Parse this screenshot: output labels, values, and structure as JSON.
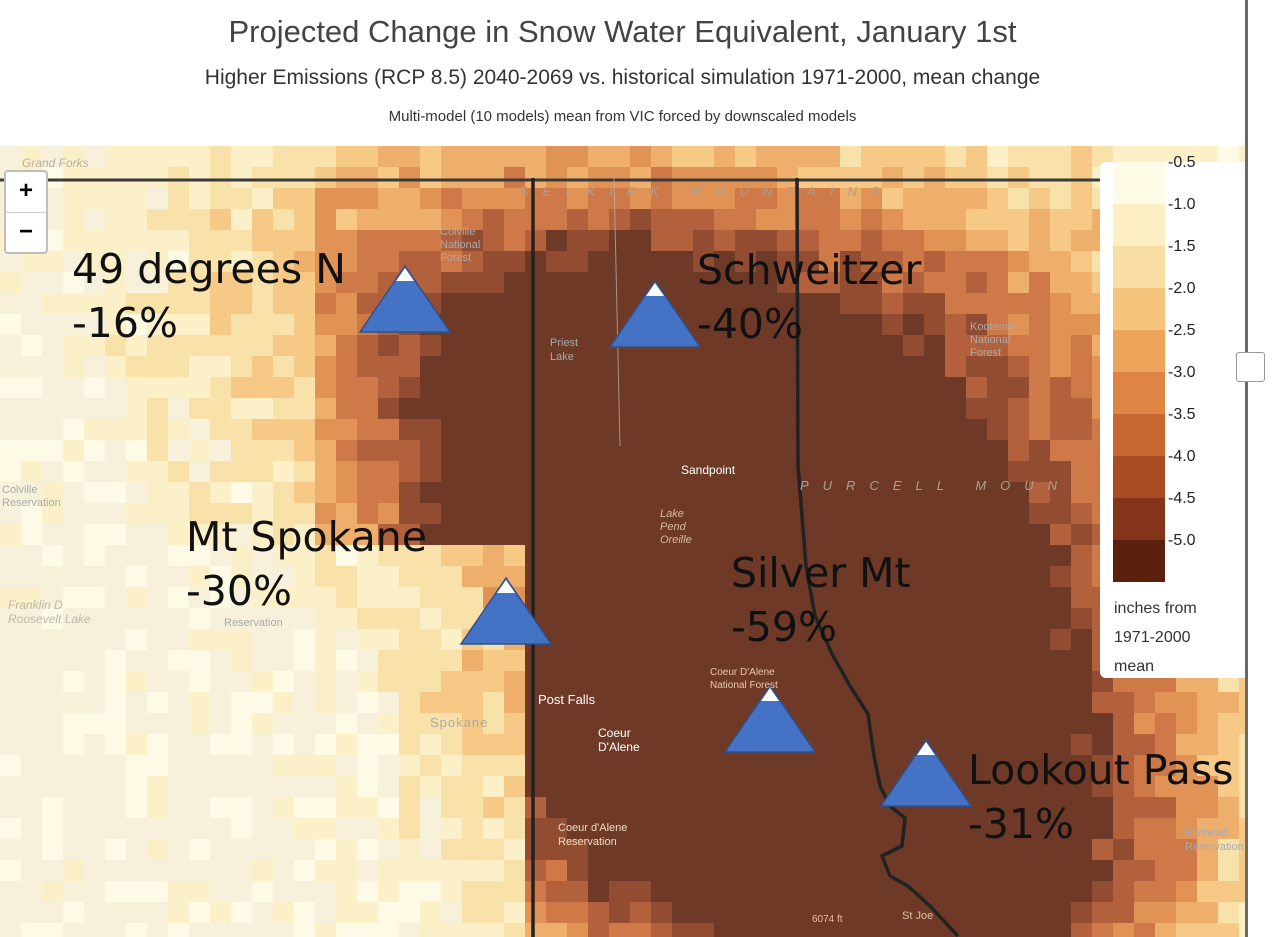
{
  "header": {
    "title": "Projected Change in Snow Water Equivalent, January 1st",
    "subtitle": "Higher Emissions (RCP 8.5) 2040-2069 vs. historical simulation 1971-2000, mean change",
    "note": "Multi-model (10 models) mean from VIC forced by downscaled models"
  },
  "zoom": {
    "in_label": "+",
    "out_label": "−"
  },
  "legend": {
    "labels": [
      "-0.5",
      "-1.0",
      "-1.5",
      "-2.0",
      "-2.5",
      "-3.0",
      "-3.5",
      "-4.0",
      "-4.5",
      "-5.0"
    ],
    "colors": [
      "#fffbe6",
      "#fcefc4",
      "#f9dea3",
      "#f6c47a",
      "#eca55b",
      "#de8543",
      "#c96733",
      "#a94c25",
      "#843419",
      "#5b200e"
    ],
    "units": "inches from 1971-2000 mean"
  },
  "callouts": [
    {
      "name": "49 degrees N",
      "change": "-16%"
    },
    {
      "name": "Schweitzer",
      "change": "-40%"
    },
    {
      "name": "Mt Spokane",
      "change": "-30%"
    },
    {
      "name": "Silver Mt",
      "change": "-59%"
    },
    {
      "name": "Lookout Pass",
      "change": "-31%"
    }
  ],
  "marker_color": "#4472c4",
  "basemap_labels": {
    "grand_forks": "Grand Forks",
    "selkirk": "SELKIRK MOUNTAINS",
    "purcell": "PURCELL MOUN",
    "colville_forest": "Colville National Forest",
    "priest_lake": "Priest Lake",
    "kootenai": "Kootenai National Forest",
    "sandpoint": "Sandpoint",
    "lake_pend_oreille": "Lake Pend Oreille",
    "colville_reservation": "Colville Reservation",
    "fdr_lake": "Franklin D Roosevelt Lake",
    "reservation": "Reservation",
    "post_falls": "Post Falls",
    "spokane": "Spokane",
    "coeur_dalene": "Coeur D'Alene",
    "cda_forest": "Coeur D'Alene National Forest",
    "cda_reservation": "Coeur d'Alene Reservation",
    "flathead": "Flathead Reservation",
    "st_joe": "St Joe",
    "elevation": "6074 ft"
  }
}
